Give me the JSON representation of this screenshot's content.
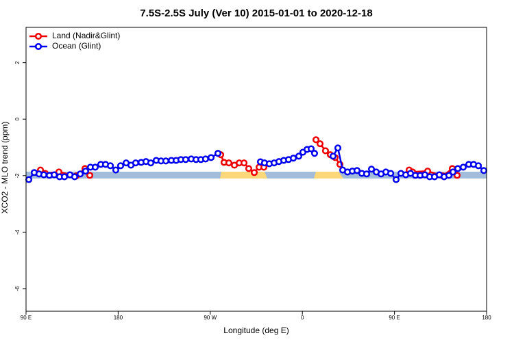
{
  "chart_data": {
    "type": "line",
    "title": "7.5S-2.5S July (Ver 10)   2015-01-01 to 2020-12-18",
    "x_label": "Longitude (deg E)",
    "y_label": "XCO2 - MLO trend (ppm)",
    "xlim": [
      90,
      540
    ],
    "ylim": [
      -6.8,
      3.25
    ],
    "xticks": [
      {
        "value": 90,
        "label": "90 E"
      },
      {
        "value": 180,
        "label": "180"
      },
      {
        "value": 270,
        "label": "90 W"
      },
      {
        "value": 360,
        "label": "0"
      },
      {
        "value": 450,
        "label": "90 E"
      },
      {
        "value": 540,
        "label": "180"
      }
    ],
    "yticks": [
      2,
      0,
      -2,
      -4,
      -6
    ],
    "legend": "top-left",
    "series": [
      {
        "name": "Land (Nadir&Glint)",
        "color": "#ee0000",
        "x": [
          104.1,
          108.8,
          122.1,
          138.9,
          147.6,
          152.3,
          null,
          280.2,
          283.5,
          288.2,
          293.6,
          298.3,
          303.0,
          307.6,
          313.0,
          317.7,
          322.4,
          null,
          373.3,
          377.3,
          382.6,
          387.3,
          392.0,
          396.7,
          null,
          464.3,
          467.7,
          482.4,
          497.2,
          506.5,
          511.2
        ],
        "values": [
          -1.8,
          -1.92,
          -1.87,
          -2.01,
          -1.75,
          -1.99,
          null,
          -1.26,
          -1.53,
          -1.55,
          -1.63,
          -1.55,
          -1.55,
          -1.75,
          -1.89,
          -1.7,
          -1.7,
          null,
          -0.73,
          -0.87,
          -1.12,
          -1.26,
          -1.36,
          -1.6,
          null,
          -1.8,
          -1.87,
          -1.84,
          -2.01,
          -1.75,
          -1.99
        ]
      },
      {
        "name": "Ocean (Glint)",
        "color": "#0000ee",
        "x": [
          92.7,
          98.0,
          102.7,
          107.4,
          112.8,
          117.5,
          122.8,
          127.5,
          132.9,
          137.5,
          142.9,
          148.2,
          152.9,
          157.6,
          163.0,
          167.7,
          172.4,
          177.7,
          182.4,
          187.8,
          192.5,
          197.1,
          202.5,
          207.2,
          211.9,
          217.2,
          221.9,
          226.6,
          232.0,
          236.7,
          241.3,
          246.0,
          251.4,
          256.1,
          260.8,
          265.4,
          270.8,
          277.5,
          null,
          319.0,
          323.0,
          327.7,
          332.4,
          337.1,
          341.8,
          346.5,
          351.2,
          356.5,
          360.5,
          364.6,
          368.6,
          371.9,
          null,
          390.0,
          394.7,
          399.4,
          404.1,
          408.8,
          413.4,
          418.1,
          422.8,
          427.5,
          432.2,
          436.9,
          441.6,
          446.3,
          451.6,
          456.3,
          461.0,
          465.7,
          470.4,
          475.1,
          479.7,
          484.4,
          489.1,
          493.8,
          498.5,
          503.2,
          507.2,
          511.9,
          517.2,
          522.6,
          527.3,
          532.0,
          537.3
        ],
        "values": [
          -2.14,
          -1.89,
          -1.94,
          -1.97,
          -1.99,
          -1.97,
          -2.04,
          -2.04,
          -1.97,
          -2.04,
          -1.94,
          -1.84,
          -1.7,
          -1.7,
          -1.6,
          -1.6,
          -1.65,
          -1.8,
          -1.65,
          -1.55,
          -1.63,
          -1.55,
          -1.53,
          -1.5,
          -1.55,
          -1.46,
          -1.48,
          -1.48,
          -1.46,
          -1.46,
          -1.43,
          -1.43,
          -1.41,
          -1.43,
          -1.43,
          -1.41,
          -1.36,
          -1.21,
          null,
          -1.51,
          -1.55,
          -1.58,
          -1.55,
          -1.5,
          -1.46,
          -1.43,
          -1.38,
          -1.31,
          -1.17,
          -1.07,
          -1.05,
          -1.21,
          null,
          -1.31,
          -1.02,
          -1.8,
          -1.87,
          -1.84,
          -1.82,
          -1.92,
          -1.94,
          -1.77,
          -1.87,
          -1.94,
          -1.87,
          -1.92,
          -2.14,
          -1.92,
          -1.97,
          -1.92,
          -1.99,
          -1.99,
          -1.97,
          -2.04,
          -2.04,
          -1.97,
          -2.04,
          -1.99,
          -1.87,
          -1.75,
          -1.7,
          -1.6,
          -1.6,
          -1.65,
          -1.82
        ]
      }
    ]
  }
}
